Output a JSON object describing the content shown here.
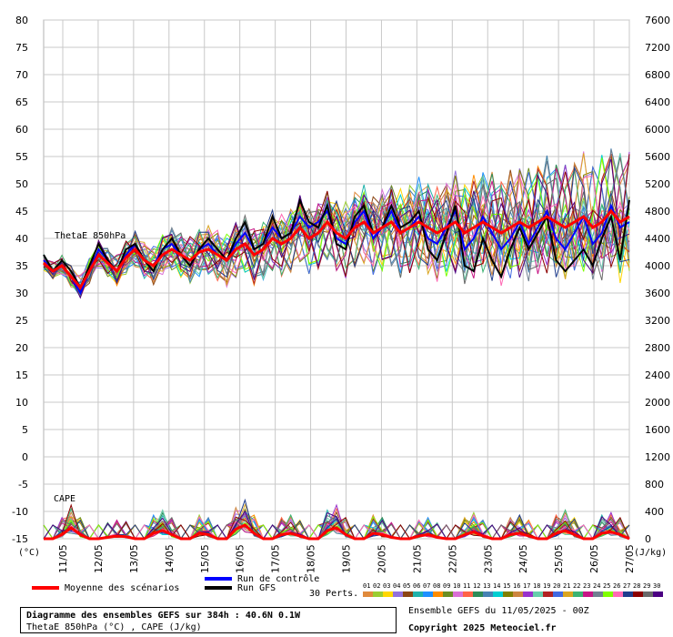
{
  "chart_data": {
    "type": "line",
    "title": "Diagramme des ensembles GEFS sur 384h : 40.6N 0.1W",
    "subtitle": "ThetaE 850hPa (°C) , CAPE (J/kg)",
    "left_axis_unit": "(°C)",
    "right_axis_unit": "(J/kg)",
    "left_ticks": [
      "80",
      "75",
      "70",
      "65",
      "60",
      "55",
      "50",
      "45",
      "40",
      "35",
      "30",
      "25",
      "20",
      "15",
      "10",
      "5",
      "0",
      "-5",
      "-10",
      "-15"
    ],
    "right_ticks": [
      "7600",
      "7200",
      "6800",
      "6400",
      "6000",
      "5600",
      "5200",
      "4800",
      "4400",
      "4000",
      "3600",
      "3200",
      "2800",
      "2400",
      "2000",
      "1600",
      "1200",
      "800",
      "400",
      "0"
    ],
    "ylim_left": [
      -15,
      80
    ],
    "ylim_right": [
      0,
      7600
    ],
    "x_labels": [
      "11/05",
      "12/05",
      "13/05",
      "14/05",
      "15/05",
      "16/05",
      "17/05",
      "18/05",
      "19/05",
      "20/05",
      "21/05",
      "22/05",
      "23/05",
      "24/05",
      "25/05",
      "26/05",
      "27/05"
    ],
    "panel_labels": {
      "thetae": "ThetaE 850hPa",
      "cape": "CAPE"
    },
    "series": [
      {
        "name": "Moyenne des scénarios",
        "color": "#ff0000",
        "values": [
          35.5,
          34,
          35,
          33,
          31,
          34,
          37,
          35.5,
          34,
          36.5,
          38,
          36,
          35,
          37,
          38,
          37,
          36,
          37.5,
          38,
          37,
          36,
          38,
          39,
          37,
          38,
          40,
          39,
          40,
          42,
          40,
          41,
          43,
          41,
          40,
          42,
          43,
          41,
          42,
          43,
          41,
          42,
          43,
          42,
          41,
          42,
          43,
          41,
          42,
          43,
          42,
          41,
          42,
          43,
          42,
          43,
          44,
          43,
          42,
          43,
          44,
          42,
          43,
          45,
          43,
          44
        ]
      },
      {
        "name": "Run de contrôle",
        "color": "#0000ff",
        "values": [
          36,
          34,
          35,
          33,
          30,
          34,
          38,
          36,
          34,
          37,
          39,
          36,
          35,
          38,
          39,
          37,
          35,
          38,
          39,
          37,
          36,
          39,
          41,
          38,
          39,
          42,
          40,
          41,
          44,
          42,
          43,
          45,
          40,
          39,
          43,
          45,
          40,
          42,
          45,
          41,
          42,
          44,
          40,
          39,
          42,
          45,
          38,
          40,
          44,
          41,
          38,
          40,
          43,
          39,
          42,
          45,
          40,
          38,
          41,
          44,
          39,
          41,
          46,
          42,
          43
        ]
      },
      {
        "name": "Run GFS",
        "color": "#000000",
        "values": [
          37,
          34,
          36,
          34,
          31,
          35,
          39,
          36,
          34,
          38,
          39,
          36,
          34,
          38,
          40,
          37,
          35,
          38,
          40,
          38,
          36,
          40,
          43,
          38,
          39,
          44,
          40,
          41,
          47,
          43,
          42,
          46,
          39,
          38,
          44,
          46,
          41,
          42,
          46,
          42,
          43,
          45,
          38,
          36,
          41,
          46,
          35,
          34,
          40,
          36,
          33,
          38,
          42,
          38,
          41,
          44,
          36,
          34,
          36,
          38,
          35,
          40,
          44,
          36,
          47
        ]
      }
    ],
    "cape_series": [
      {
        "name": "Moyenne des scénarios",
        "color": "#ff0000",
        "values": [
          0,
          0,
          60,
          160,
          60,
          0,
          0,
          20,
          40,
          30,
          0,
          0,
          80,
          120,
          60,
          0,
          0,
          80,
          60,
          0,
          0,
          140,
          200,
          80,
          0,
          0,
          60,
          80,
          40,
          0,
          0,
          120,
          160,
          60,
          0,
          0,
          80,
          60,
          20,
          0,
          0,
          40,
          60,
          20,
          0,
          0,
          60,
          100,
          40,
          0,
          0,
          60,
          80,
          40,
          0,
          0,
          80,
          120,
          60,
          0,
          0,
          80,
          100,
          60,
          0
        ]
      }
    ],
    "pert_label": "30 Perts.",
    "pert_numbers": [
      "01",
      "02",
      "03",
      "04",
      "05",
      "06",
      "07",
      "08",
      "09",
      "10",
      "11",
      "12",
      "13",
      "14",
      "15",
      "16",
      "17",
      "18",
      "19",
      "20",
      "21",
      "22",
      "23",
      "24",
      "25",
      "26",
      "27",
      "28",
      "29",
      "30"
    ],
    "pert_colors": [
      "#e08a3c",
      "#9acd32",
      "#ffd700",
      "#9370db",
      "#8b4513",
      "#20b2aa",
      "#1e90ff",
      "#ff8c00",
      "#6b8e23",
      "#da70d6",
      "#ff6347",
      "#2e8b57",
      "#4682b4",
      "#00ced1",
      "#808000",
      "#cd853f",
      "#9932cc",
      "#66cdaa",
      "#b22222",
      "#4169e1",
      "#daa520",
      "#3cb371",
      "#c71585",
      "#708090",
      "#7fff00",
      "#ff69b4",
      "#1e3c8c",
      "#8b0000",
      "#696969",
      "#4b0082"
    ]
  },
  "legend": {
    "mean_label": "Moyenne des scénarios",
    "control_label": "Run de contrôle",
    "gfs_label": "Run GFS",
    "mean_color": "#ff0000",
    "control_color": "#0000ff",
    "gfs_color": "#000000"
  },
  "info": {
    "title": "Diagramme des ensembles GEFS sur 384h : 40.6N 0.1W",
    "subtitle": "ThetaE 850hPa (°C) , CAPE (J/kg)",
    "run": "Ensemble GEFS du 11/05/2025 - 00Z",
    "copyright": "Copyright 2025 Meteociel.fr"
  }
}
